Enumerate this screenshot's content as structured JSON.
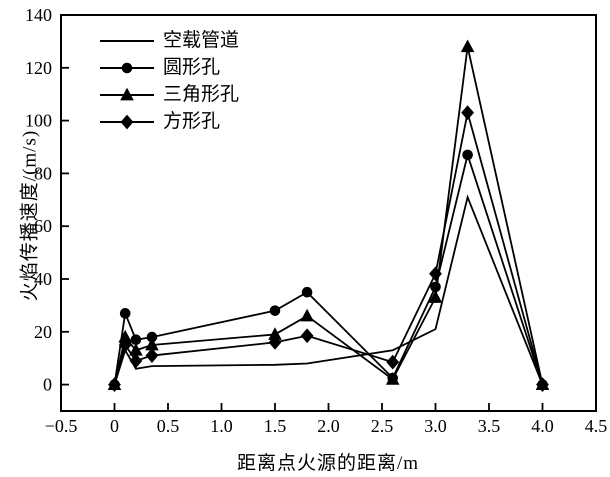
{
  "figure": {
    "background": "#ffffff",
    "line_color": "#000000"
  },
  "chart_data": {
    "type": "line",
    "title": "",
    "xlabel": "距离点火源的距离/m",
    "ylabel": "火焰传播速度/(m/s)",
    "grid": false,
    "legend_position": "upper-left",
    "x": [
      0,
      0.1,
      0.2,
      0.35,
      1.5,
      1.8,
      2.6,
      3.0,
      3.3,
      4.0
    ],
    "series": [
      {
        "name": "空载管道",
        "marker": "none",
        "values": [
          0,
          13,
          6,
          7,
          7.5,
          8,
          13,
          21,
          71,
          0
        ]
      },
      {
        "name": "圆形孔",
        "marker": "circle",
        "values": [
          0,
          27,
          17,
          18,
          28,
          35,
          2.5,
          37,
          87,
          0
        ]
      },
      {
        "name": "三角形孔",
        "marker": "triangle",
        "values": [
          0,
          18,
          13,
          15,
          19,
          26,
          2,
          33,
          128,
          0
        ]
      },
      {
        "name": "方形孔",
        "marker": "diamond",
        "values": [
          0,
          15,
          9,
          11,
          16,
          18.5,
          8.5,
          42,
          103,
          0
        ]
      }
    ],
    "axes": {
      "x": {
        "min": -0.5,
        "max": 4.5,
        "tick_values": [
          -0.5,
          0,
          0.5,
          1.0,
          1.5,
          2.0,
          2.5,
          3.0,
          3.5,
          4.0,
          4.5
        ],
        "tick_labels": [
          "−0.5",
          "0",
          "0.5",
          "1.0",
          "1.5",
          "2.0",
          "2.5",
          "3.0",
          "3.5",
          "4.0",
          "4.5"
        ]
      },
      "y": {
        "min": -10,
        "max": 140,
        "tick_values": [
          0,
          20,
          40,
          60,
          80,
          100,
          120,
          140
        ],
        "tick_labels": [
          "0",
          "20",
          "40",
          "60",
          "80",
          "100",
          "120",
          "140"
        ]
      }
    }
  }
}
